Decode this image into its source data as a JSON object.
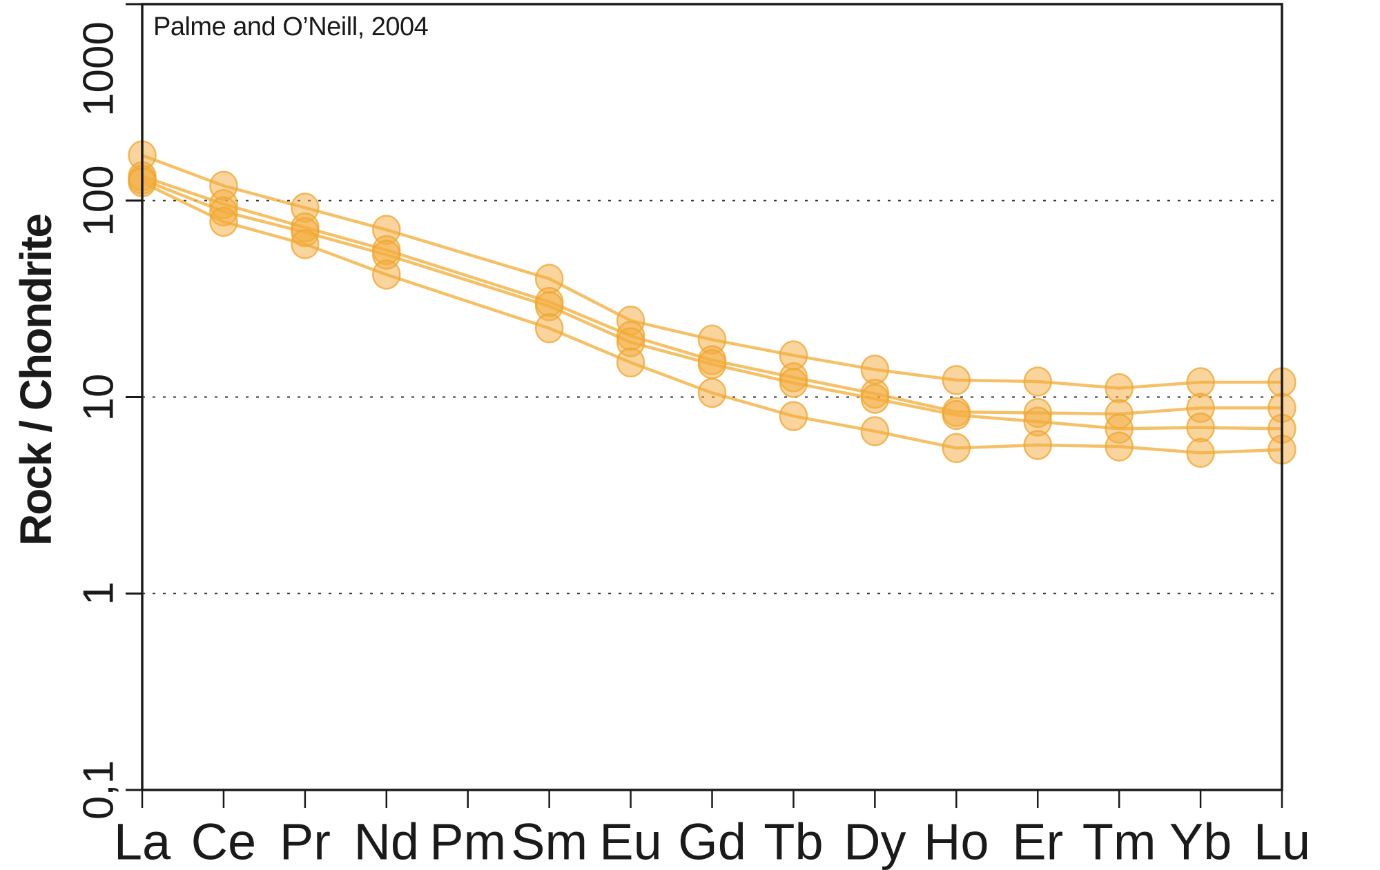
{
  "chart_data": {
    "type": "line",
    "title": "",
    "annotation": "Palme and O’Neill, 2004",
    "ylabel": "Rock / Chondrite",
    "xlabel": "",
    "yscale": "log",
    "ylim": [
      0.1,
      1000
    ],
    "grid": true,
    "legend": "none",
    "categories": [
      "La",
      "Ce",
      "Pr",
      "Nd",
      "Pm",
      "Sm",
      "Eu",
      "Gd",
      "Tb",
      "Dy",
      "Ho",
      "Er",
      "Tm",
      "Yb",
      "Lu"
    ],
    "y_tick_labels": [
      "1000",
      "100",
      "10",
      "1",
      "0,1"
    ],
    "y_tick_values": [
      1000,
      100,
      10,
      1,
      0.1
    ],
    "gridline_values": [
      100,
      10,
      1
    ],
    "series": [
      {
        "name": "series-1",
        "values": [
          170,
          119,
          92,
          71,
          null,
          40,
          24.5,
          19.6,
          16.3,
          13.8,
          12.2,
          12,
          11.1,
          11.9,
          11.9
        ]
      },
      {
        "name": "series-2",
        "values": [
          133,
          96,
          73,
          56,
          null,
          30.5,
          20.5,
          15.4,
          12.6,
          10.4,
          8.4,
          8.3,
          8.2,
          8.8,
          8.8
        ]
      },
      {
        "name": "series-3",
        "values": [
          128,
          88,
          69,
          53,
          null,
          29,
          19,
          14.7,
          11.8,
          9.8,
          8.1,
          7.5,
          6.9,
          7,
          6.9
        ]
      },
      {
        "name": "series-4",
        "values": [
          124,
          78,
          60,
          42,
          null,
          22.4,
          15,
          10.5,
          8,
          6.7,
          5.5,
          5.7,
          5.6,
          5.2,
          5.4
        ]
      }
    ],
    "colors": {
      "marker_fill": "rgba(243,172,60,0.5)",
      "marker_stroke": "rgba(238,165,48,0.75)",
      "line": "rgba(243,177,66,0.8)",
      "axis": "#1a1a1a",
      "grid": "#333333",
      "text": "#1a1a1a"
    }
  }
}
